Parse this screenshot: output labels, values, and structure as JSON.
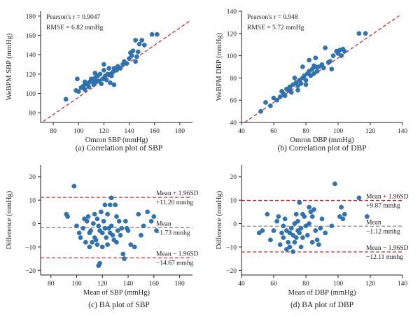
{
  "colors": {
    "point": "#2f75b5",
    "point_stroke": "#1f5d94",
    "fit": "#d42b2b",
    "mean": "#8a8a8a",
    "limit": "#d42b2b",
    "axis": "#222222"
  },
  "chart_data": [
    {
      "type": "scatter",
      "caption": "(a) Correlation plot of SBP",
      "xlabel": "Omron SBP (mmHg)",
      "ylabel": "WeBPM SBP (mmHg)",
      "xlim": [
        70,
        190
      ],
      "ylim": [
        70,
        185
      ],
      "xticks": [
        80,
        100,
        120,
        140,
        160,
        180
      ],
      "yticks": [
        80,
        100,
        120,
        140,
        160,
        180
      ],
      "stats": [
        "Pearson's r = 0.9047",
        "RMSE = 6.82 mmHg"
      ],
      "fit_line": {
        "x": [
          72,
          188
        ],
        "y": [
          71,
          175
        ]
      },
      "points": [
        [
          90,
          94
        ],
        [
          98,
          103
        ],
        [
          99,
          115
        ],
        [
          100,
          102
        ],
        [
          102,
          106
        ],
        [
          104,
          108
        ],
        [
          105,
          104
        ],
        [
          106,
          110
        ],
        [
          107,
          110
        ],
        [
          108,
          107
        ],
        [
          109,
          112
        ],
        [
          110,
          115
        ],
        [
          111,
          113
        ],
        [
          112,
          109
        ],
        [
          113,
          116
        ],
        [
          114,
          112
        ],
        [
          115,
          118
        ],
        [
          116,
          113
        ],
        [
          117,
          120
        ],
        [
          118,
          110
        ],
        [
          119,
          115
        ],
        [
          120,
          124
        ],
        [
          121,
          118
        ],
        [
          122,
          114
        ],
        [
          123,
          120
        ],
        [
          124,
          126
        ],
        [
          125,
          111
        ],
        [
          125,
          120
        ],
        [
          126,
          118
        ],
        [
          127,
          122
        ],
        [
          128,
          126
        ],
        [
          128,
          109
        ],
        [
          130,
          124
        ],
        [
          131,
          128
        ],
        [
          133,
          126
        ],
        [
          135,
          130
        ],
        [
          136,
          133
        ],
        [
          138,
          131
        ],
        [
          140,
          136
        ],
        [
          141,
          142
        ],
        [
          142,
          139
        ],
        [
          143,
          144
        ],
        [
          145,
          133
        ],
        [
          146,
          138
        ],
        [
          147,
          143
        ],
        [
          148,
          151
        ],
        [
          150,
          155
        ],
        [
          152,
          150
        ],
        [
          158,
          161
        ],
        [
          162,
          161
        ],
        [
          145,
          155
        ],
        [
          120,
          130
        ],
        [
          113,
          121
        ],
        [
          105,
          112
        ]
      ]
    },
    {
      "type": "scatter",
      "caption": "(b) Correlation plot of DBP",
      "xlabel": "Omron DBP (mmHg)",
      "ylabel": "WeBPM DBP (mmHg)",
      "xlim": [
        40,
        140
      ],
      "ylim": [
        40,
        140
      ],
      "xticks": [
        40,
        60,
        80,
        100,
        120,
        140
      ],
      "yticks": [
        40,
        60,
        80,
        100,
        120,
        140
      ],
      "stats": [
        "Pearson's r = 0.948",
        "RMSE = 5.72 mmHg"
      ],
      "fit_line": {
        "x": [
          42,
          138
        ],
        "y": [
          40,
          136
        ]
      },
      "points": [
        [
          52,
          50
        ],
        [
          55,
          58
        ],
        [
          58,
          55
        ],
        [
          60,
          62
        ],
        [
          62,
          60
        ],
        [
          64,
          63
        ],
        [
          65,
          68
        ],
        [
          66,
          66
        ],
        [
          67,
          64
        ],
        [
          68,
          70
        ],
        [
          69,
          69
        ],
        [
          70,
          72
        ],
        [
          71,
          67
        ],
        [
          72,
          74
        ],
        [
          73,
          80
        ],
        [
          74,
          76
        ],
        [
          75,
          69
        ],
        [
          75,
          73
        ],
        [
          76,
          78
        ],
        [
          77,
          75
        ],
        [
          78,
          80
        ],
        [
          79,
          82
        ],
        [
          80,
          78
        ],
        [
          81,
          84
        ],
        [
          82,
          86
        ],
        [
          83,
          82
        ],
        [
          84,
          88
        ],
        [
          85,
          84
        ],
        [
          86,
          90
        ],
        [
          87,
          86
        ],
        [
          88,
          90
        ],
        [
          90,
          92
        ],
        [
          91,
          89
        ],
        [
          92,
          107
        ],
        [
          94,
          94
        ],
        [
          95,
          95
        ],
        [
          96,
          88
        ],
        [
          97,
          100
        ],
        [
          99,
          104
        ],
        [
          100,
          102
        ],
        [
          101,
          105
        ],
        [
          102,
          100
        ],
        [
          103,
          106
        ],
        [
          104,
          104
        ],
        [
          113,
          120
        ],
        [
          117,
          120
        ],
        [
          85,
          91
        ],
        [
          80,
          74
        ],
        [
          70,
          71
        ],
        [
          78,
          90
        ],
        [
          82,
          96
        ],
        [
          86,
          98
        ]
      ]
    },
    {
      "type": "scatter",
      "caption": "(c) BA plot of SBP",
      "xlabel": "Mean of SBP (mmHg)",
      "ylabel": "Difference (mmHg)",
      "xlim": [
        72,
        190
      ],
      "ylim": [
        -22,
        25
      ],
      "xticks": [
        80,
        100,
        120,
        140,
        160,
        180
      ],
      "yticks": [
        -20,
        -10,
        0,
        10,
        20
      ],
      "mean_line": -1.73,
      "upper_loa": 11.2,
      "lower_loa": -14.67,
      "annotations": {
        "upper": [
          "Mean + 1.96SD",
          "+11.20 mmhg"
        ],
        "mean": [
          "Mean",
          "−1.73 mmhg"
        ],
        "lower": [
          "Mean − 1.96SD",
          "−14.67 mmhg"
        ]
      },
      "points": [
        [
          92,
          4
        ],
        [
          93,
          3
        ],
        [
          100,
          -1
        ],
        [
          102,
          -4
        ],
        [
          103,
          -6
        ],
        [
          105,
          -2
        ],
        [
          106,
          2
        ],
        [
          107,
          -8
        ],
        [
          108,
          1
        ],
        [
          109,
          3
        ],
        [
          110,
          -4
        ],
        [
          110,
          -10
        ],
        [
          111,
          -3
        ],
        [
          112,
          -8
        ],
        [
          113,
          0
        ],
        [
          114,
          4
        ],
        [
          114,
          -6
        ],
        [
          115,
          -7
        ],
        [
          116,
          -9
        ],
        [
          116,
          2
        ],
        [
          117,
          -1
        ],
        [
          117,
          -18
        ],
        [
          118,
          -17
        ],
        [
          118,
          -3
        ],
        [
          119,
          5
        ],
        [
          120,
          -4
        ],
        [
          120,
          -10
        ],
        [
          121,
          1
        ],
        [
          122,
          8
        ],
        [
          122,
          -2
        ],
        [
          123,
          -6
        ],
        [
          124,
          -9
        ],
        [
          124,
          4
        ],
        [
          125,
          -2
        ],
        [
          126,
          8
        ],
        [
          126,
          -4
        ],
        [
          127,
          11
        ],
        [
          127,
          -1
        ],
        [
          128,
          -5
        ],
        [
          129,
          -7
        ],
        [
          130,
          8
        ],
        [
          131,
          3
        ],
        [
          131,
          -8
        ],
        [
          132,
          -3
        ],
        [
          133,
          1
        ],
        [
          134,
          -5
        ],
        [
          135,
          -2
        ],
        [
          136,
          -13
        ],
        [
          137,
          -15
        ],
        [
          138,
          1
        ],
        [
          139,
          -2
        ],
        [
          140,
          -3
        ],
        [
          142,
          -9
        ],
        [
          145,
          -10
        ],
        [
          148,
          4
        ],
        [
          150,
          -5
        ],
        [
          152,
          -1
        ],
        [
          155,
          5
        ],
        [
          158,
          1
        ],
        [
          160,
          3
        ],
        [
          162,
          -3
        ],
        [
          98,
          16
        ]
      ]
    },
    {
      "type": "scatter",
      "caption": "(d) BA plot of DBP",
      "xlabel": "Mean of DBP (mmHg)",
      "ylabel": "Difference (mmHg)",
      "xlim": [
        40,
        140
      ],
      "ylim": [
        -22,
        25
      ],
      "xticks": [
        40,
        60,
        80,
        100,
        120,
        140
      ],
      "yticks": [
        -20,
        -10,
        0,
        10,
        20
      ],
      "mean_line": -1.12,
      "upper_loa": 9.87,
      "lower_loa": -12.11,
      "annotations": {
        "upper": [
          "Mean + 1.96SD",
          "+9.87 mmhg"
        ],
        "mean": [
          "Mean",
          "−1.12 mmhg"
        ],
        "lower": [
          "Mean − 1.96SD",
          "−12.11 mmhg"
        ]
      },
      "points": [
        [
          51,
          -4
        ],
        [
          53,
          -3
        ],
        [
          56,
          4
        ],
        [
          58,
          -7
        ],
        [
          60,
          -3
        ],
        [
          62,
          1
        ],
        [
          63,
          3
        ],
        [
          64,
          -9
        ],
        [
          65,
          -4
        ],
        [
          66,
          -1
        ],
        [
          66,
          -6
        ],
        [
          67,
          2
        ],
        [
          68,
          -3
        ],
        [
          68,
          -11
        ],
        [
          69,
          -8
        ],
        [
          70,
          -4
        ],
        [
          70,
          -10
        ],
        [
          71,
          -2
        ],
        [
          72,
          -5
        ],
        [
          72,
          -12
        ],
        [
          73,
          0
        ],
        [
          73,
          -8
        ],
        [
          74,
          4
        ],
        [
          74,
          -6
        ],
        [
          75,
          -3
        ],
        [
          75,
          1
        ],
        [
          76,
          9
        ],
        [
          76,
          -4
        ],
        [
          77,
          -2
        ],
        [
          77,
          -10
        ],
        [
          78,
          -6
        ],
        [
          78,
          4
        ],
        [
          79,
          3
        ],
        [
          80,
          -1
        ],
        [
          81,
          -5
        ],
        [
          82,
          7
        ],
        [
          82,
          0
        ],
        [
          83,
          5
        ],
        [
          84,
          -8
        ],
        [
          84,
          3
        ],
        [
          85,
          6
        ],
        [
          86,
          -3
        ],
        [
          87,
          -7
        ],
        [
          88,
          -9
        ],
        [
          89,
          -2
        ],
        [
          90,
          2
        ],
        [
          92,
          -4
        ],
        [
          96,
          -1
        ],
        [
          98,
          17
        ],
        [
          101,
          3
        ],
        [
          102,
          7
        ],
        [
          103,
          2
        ],
        [
          104,
          4
        ],
        [
          113,
          11
        ],
        [
          118,
          3
        ]
      ]
    }
  ]
}
